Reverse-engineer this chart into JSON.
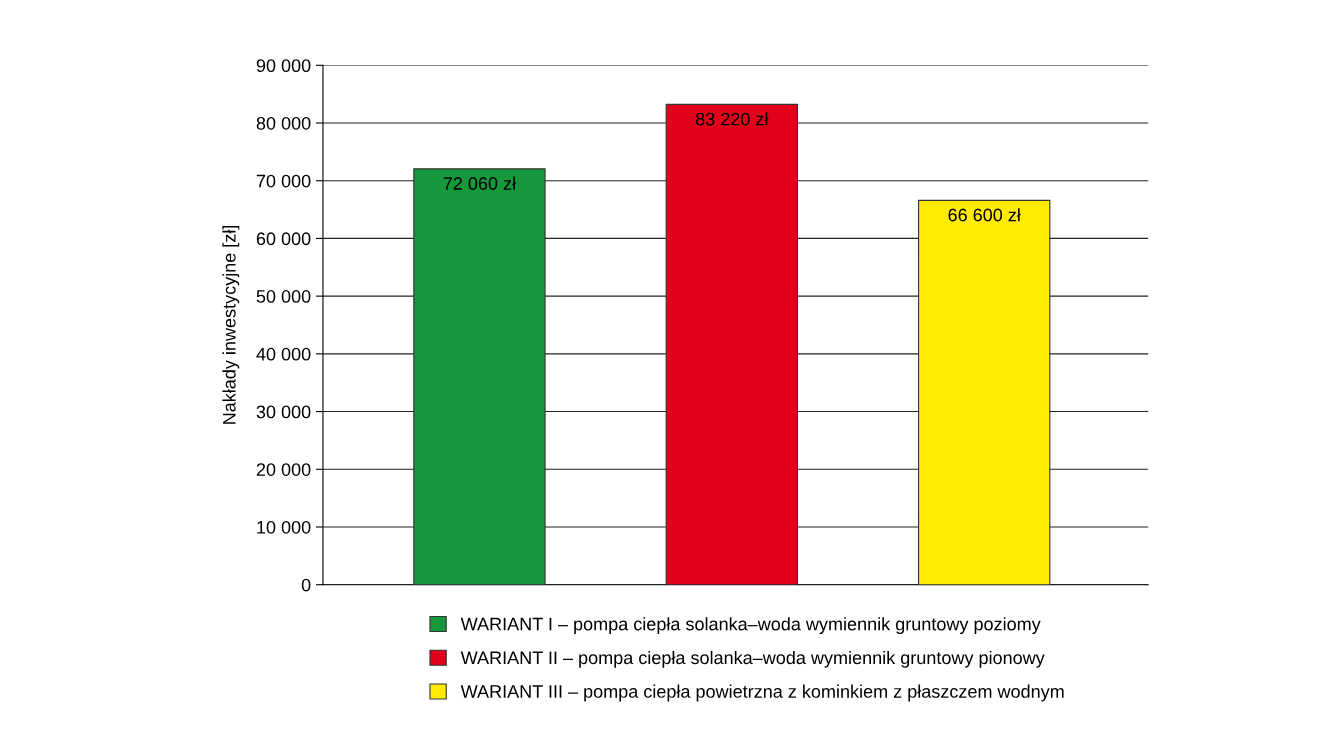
{
  "chart_data": {
    "type": "bar",
    "ylabel": "Nakłady inwestycyjne [zł]",
    "categories": [
      null,
      null,
      null
    ],
    "series": [
      {
        "name": "WARIANT I – pompa ciepła solanka–woda wymiennik gruntowy poziomy",
        "color": "#15973c",
        "values": [
          72060,
          null,
          null
        ],
        "value_labels": [
          "72 060 zł",
          null,
          null
        ]
      },
      {
        "name": "WARIANT II – pompa ciepła solanka–woda wymiennik gruntowy pionowy",
        "color": "#e2001a",
        "values": [
          null,
          83220,
          null
        ],
        "value_labels": [
          null,
          "83 220 zł",
          null
        ]
      },
      {
        "name": "WARIANT III – pompa ciepła powietrzna z kominkiem z płaszczem wodnym",
        "color": "#ffec00",
        "values": [
          null,
          null,
          66600
        ],
        "value_labels": [
          null,
          null,
          "66 600 zł"
        ]
      }
    ],
    "ylim": [
      0,
      90000
    ],
    "yticks": [
      0,
      {
        "value": 10000,
        "label": "10 000"
      },
      {
        "value": 20000,
        "label": "20 000"
      },
      {
        "value": 30000,
        "label": "30 000"
      },
      {
        "value": 40000,
        "label": "40 000"
      },
      {
        "value": 50000,
        "label": "50 000"
      },
      {
        "value": 60000,
        "label": "60 000"
      },
      {
        "value": 70000,
        "label": "70 000"
      },
      {
        "value": 80000,
        "label": "80 000"
      },
      {
        "value": 90000,
        "label": "90 000"
      }
    ],
    "grid": "y",
    "legend": "bottom"
  }
}
